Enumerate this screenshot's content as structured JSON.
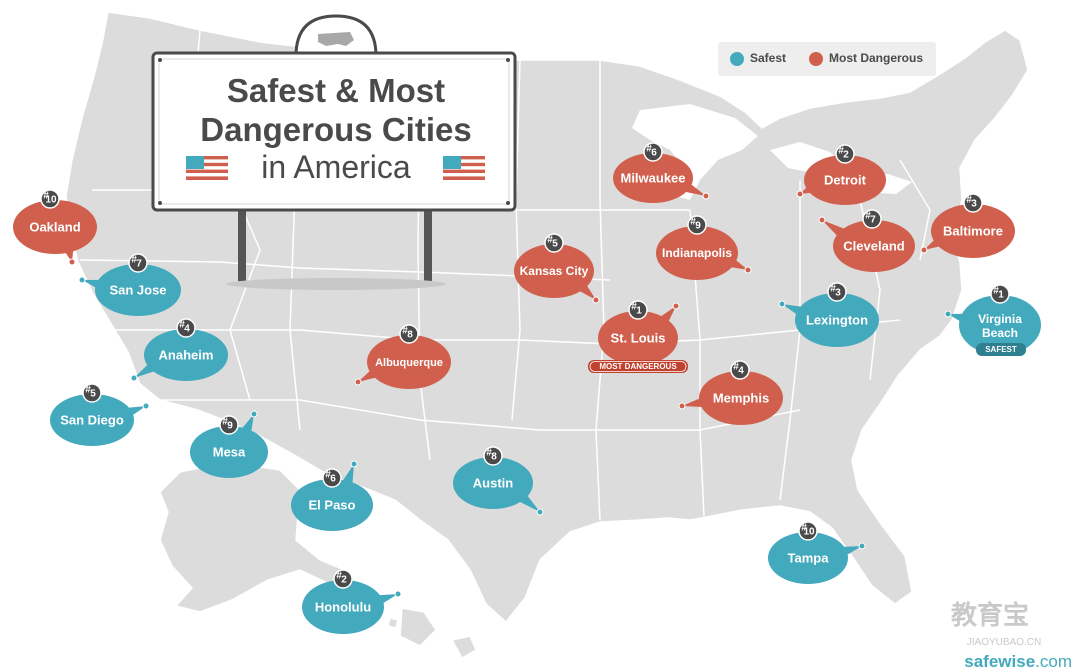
{
  "title": {
    "line1": "Safest & Most",
    "line2": "Dangerous Cities",
    "line3": "in America"
  },
  "legend": {
    "safest_label": "Safest",
    "dangerous_label": "Most Dangerous",
    "safest_color": "#43a9bd",
    "dangerous_color": "#d0604d"
  },
  "badges": {
    "most_dangerous": "MOST DANGEROUS",
    "safest": "SAFEST"
  },
  "cities": [
    {
      "name": "Oakland",
      "rank": 10,
      "category": "dangerous"
    },
    {
      "name": "Milwaukee",
      "rank": 6,
      "category": "dangerous"
    },
    {
      "name": "Detroit",
      "rank": 2,
      "category": "dangerous"
    },
    {
      "name": "Baltimore",
      "rank": 3,
      "category": "dangerous"
    },
    {
      "name": "Cleveland",
      "rank": 7,
      "category": "dangerous"
    },
    {
      "name": "Indianapolis",
      "rank": 9,
      "category": "dangerous"
    },
    {
      "name": "Kansas City",
      "rank": 5,
      "category": "dangerous"
    },
    {
      "name": "St. Louis",
      "rank": 1,
      "category": "dangerous"
    },
    {
      "name": "Albuquerque",
      "rank": 8,
      "category": "dangerous"
    },
    {
      "name": "Memphis",
      "rank": 4,
      "category": "dangerous"
    },
    {
      "name": "San Jose",
      "rank": 7,
      "category": "safest"
    },
    {
      "name": "Anaheim",
      "rank": 4,
      "category": "safest"
    },
    {
      "name": "San Diego",
      "rank": 5,
      "category": "safest"
    },
    {
      "name": "Mesa",
      "rank": 9,
      "category": "safest"
    },
    {
      "name": "El Paso",
      "rank": 6,
      "category": "safest"
    },
    {
      "name": "Austin",
      "rank": 8,
      "category": "safest"
    },
    {
      "name": "Honolulu",
      "rank": 2,
      "category": "safest"
    },
    {
      "name": "Tampa",
      "rank": 10,
      "category": "safest"
    },
    {
      "name": "Lexington",
      "rank": 3,
      "category": "safest"
    },
    {
      "name": "Virginia Beach",
      "rank": 1,
      "category": "safest"
    }
  ],
  "watermark": {
    "cn": "教育宝",
    "site": "JIAOYUBAO.CN",
    "brand_prefix": "safe",
    "brand_mid": "wise",
    "brand_suffix": ".com",
    "brand_color": "#43a9bd"
  },
  "colors": {
    "map_land": "#dcdcdc",
    "map_border": "#ffffff",
    "rank_circle": "#4a4a4a"
  }
}
